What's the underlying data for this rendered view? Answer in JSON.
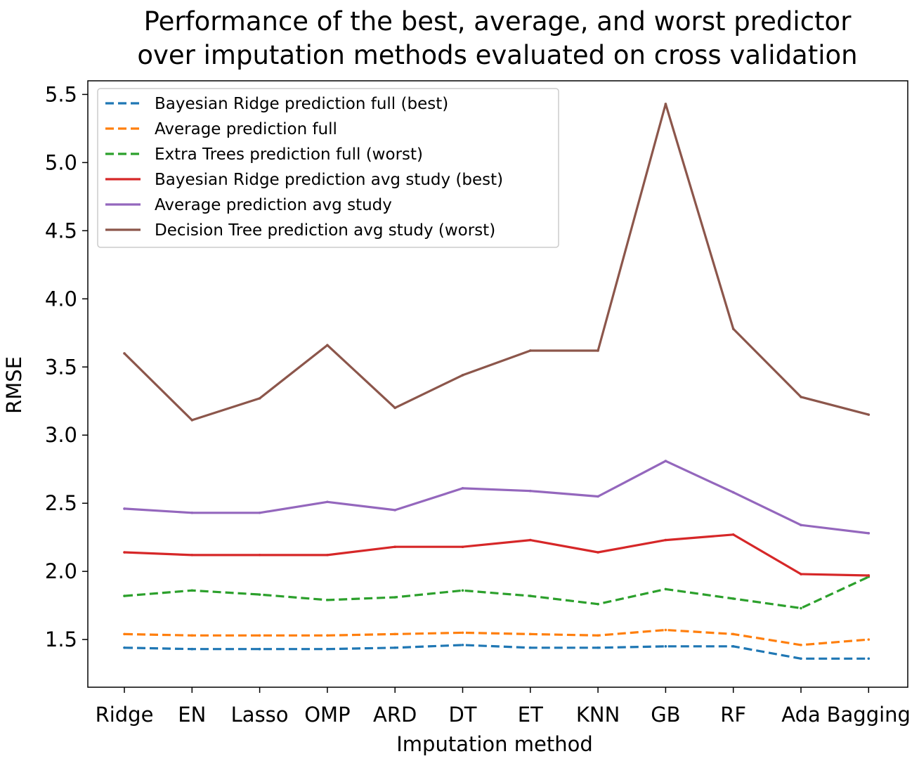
{
  "chart_data": {
    "type": "line",
    "title_line1": "Performance of the best, average, and worst predictor",
    "title_line2": "over imputation methods evaluated on cross validation",
    "xlabel": "Imputation method",
    "ylabel": "RMSE",
    "categories": [
      "Ridge",
      "EN",
      "Lasso",
      "OMP",
      "ARD",
      "DT",
      "ET",
      "KNN",
      "GB",
      "RF",
      "Ada",
      "Bagging"
    ],
    "ylim": [
      1.15,
      5.6
    ],
    "yticks": [
      "1.5",
      "2.0",
      "2.5",
      "3.0",
      "3.5",
      "4.0",
      "4.5",
      "5.0",
      "5.5"
    ],
    "grid": false,
    "legend_position": "top-left",
    "series": [
      {
        "name": "Bayesian Ridge prediction full (best)",
        "color": "#1f77b4",
        "dashed": true,
        "values": [
          1.44,
          1.43,
          1.43,
          1.43,
          1.44,
          1.46,
          1.44,
          1.44,
          1.45,
          1.45,
          1.36,
          1.36
        ]
      },
      {
        "name": "Average prediction full",
        "color": "#ff7f0e",
        "dashed": true,
        "values": [
          1.54,
          1.53,
          1.53,
          1.53,
          1.54,
          1.55,
          1.54,
          1.53,
          1.57,
          1.54,
          1.46,
          1.5
        ]
      },
      {
        "name": "Extra Trees prediction full (worst)",
        "color": "#2ca02c",
        "dashed": true,
        "values": [
          1.82,
          1.86,
          1.83,
          1.79,
          1.81,
          1.86,
          1.82,
          1.76,
          1.87,
          1.8,
          1.73,
          1.96
        ]
      },
      {
        "name": "Bayesian Ridge prediction avg study (best)",
        "color": "#d62728",
        "dashed": false,
        "values": [
          2.14,
          2.12,
          2.12,
          2.12,
          2.18,
          2.18,
          2.23,
          2.14,
          2.23,
          2.27,
          1.98,
          1.97
        ]
      },
      {
        "name": "Average prediction avg study",
        "color": "#9467bd",
        "dashed": false,
        "values": [
          2.46,
          2.43,
          2.43,
          2.51,
          2.45,
          2.61,
          2.59,
          2.55,
          2.81,
          2.58,
          2.34,
          2.28
        ]
      },
      {
        "name": "Decision Tree prediction avg study (worst)",
        "color": "#8c564b",
        "dashed": false,
        "values": [
          3.6,
          3.11,
          3.27,
          3.66,
          3.2,
          3.44,
          3.62,
          3.62,
          5.43,
          3.78,
          3.28,
          3.15
        ]
      }
    ]
  }
}
